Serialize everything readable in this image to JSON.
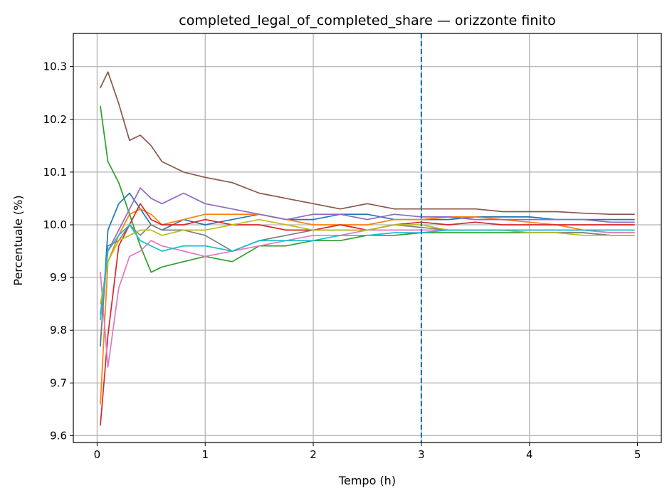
{
  "chart_data": {
    "type": "line",
    "title": "completed_legal_of_completed_share — orizzonte finito",
    "xlabel": "Tempo (h)",
    "ylabel": "Percentuale (%)",
    "xlim": [
      -0.22,
      5.22
    ],
    "ylim": [
      9.587,
      10.363
    ],
    "xticks": [
      0,
      1,
      2,
      3,
      4,
      5
    ],
    "yticks": [
      9.6,
      9.7,
      9.8,
      9.9,
      10.0,
      10.1,
      10.2,
      10.3
    ],
    "xtick_labels": [
      "0",
      "1",
      "2",
      "3",
      "4",
      "5"
    ],
    "ytick_labels": [
      "9.6",
      "9.7",
      "9.8",
      "9.9",
      "10.0",
      "10.1",
      "10.2",
      "10.3"
    ],
    "grid": true,
    "vline": {
      "x": 3.0,
      "style": "dashed",
      "color": "#1f77b4"
    },
    "x": [
      0.03,
      0.1,
      0.2,
      0.3,
      0.4,
      0.5,
      0.6,
      0.8,
      1.0,
      1.25,
      1.5,
      1.75,
      2.0,
      2.25,
      2.5,
      2.75,
      3.0,
      3.25,
      3.5,
      3.75,
      4.0,
      4.25,
      4.5,
      4.75,
      4.97
    ],
    "series": [
      {
        "color": "#1f77b4",
        "values": [
          9.77,
          9.99,
          10.04,
          10.06,
          10.03,
          10.0,
          9.99,
          10.01,
          10.0,
          10.01,
          10.02,
          10.01,
          10.01,
          10.02,
          10.02,
          10.01,
          10.01,
          10.01,
          10.015,
          10.015,
          10.015,
          10.01,
          10.01,
          10.01,
          10.01
        ]
      },
      {
        "color": "#ff7f0e",
        "values": [
          9.66,
          9.93,
          9.98,
          10.02,
          10.03,
          10.02,
          10.0,
          10.01,
          10.02,
          10.02,
          10.02,
          10.01,
          10.0,
          10.0,
          10.0,
          10.01,
          10.01,
          10.015,
          10.015,
          10.01,
          10.005,
          10.0,
          9.99,
          9.985,
          9.985
        ]
      },
      {
        "color": "#2ca02c",
        "values": [
          10.225,
          10.12,
          10.08,
          10.02,
          9.96,
          9.91,
          9.92,
          9.93,
          9.94,
          9.93,
          9.96,
          9.96,
          9.97,
          9.97,
          9.98,
          9.98,
          9.985,
          9.985,
          9.985,
          9.985,
          9.985,
          9.985,
          9.985,
          9.98,
          9.98
        ]
      },
      {
        "color": "#d62728",
        "values": [
          9.62,
          9.79,
          9.96,
          10.0,
          10.04,
          10.01,
          10.0,
          10.0,
          10.01,
          10.0,
          10.0,
          9.99,
          9.99,
          10.0,
          9.99,
          10.0,
          10.005,
          10.0,
          10.005,
          10.0,
          10.0,
          10.0,
          10.0,
          10.0,
          10.0
        ]
      },
      {
        "color": "#9467bd",
        "values": [
          9.83,
          9.95,
          9.99,
          10.03,
          10.07,
          10.05,
          10.04,
          10.06,
          10.04,
          10.03,
          10.02,
          10.01,
          10.02,
          10.02,
          10.01,
          10.02,
          10.015,
          10.015,
          10.01,
          10.01,
          10.01,
          10.01,
          10.01,
          10.005,
          10.005
        ]
      },
      {
        "color": "#8c564b",
        "values": [
          10.26,
          10.29,
          10.23,
          10.16,
          10.17,
          10.15,
          10.12,
          10.1,
          10.09,
          10.08,
          10.06,
          10.05,
          10.04,
          10.03,
          10.04,
          10.03,
          10.03,
          10.03,
          10.03,
          10.025,
          10.025,
          10.025,
          10.022,
          10.02,
          10.02
        ]
      },
      {
        "color": "#e377c2",
        "values": [
          9.91,
          9.73,
          9.88,
          9.94,
          9.95,
          9.97,
          9.96,
          9.95,
          9.94,
          9.95,
          9.96,
          9.97,
          9.98,
          9.98,
          9.99,
          9.99,
          9.99,
          9.99,
          9.99,
          9.99,
          9.99,
          9.99,
          9.99,
          9.985,
          9.985
        ]
      },
      {
        "color": "#7f7f7f",
        "values": [
          9.78,
          9.96,
          9.97,
          10.0,
          9.98,
          10.0,
          9.99,
          9.99,
          9.98,
          9.95,
          9.97,
          9.98,
          9.99,
          9.99,
          9.99,
          10.0,
          9.995,
          9.99,
          9.99,
          9.99,
          9.985,
          9.985,
          9.985,
          9.98,
          9.98
        ]
      },
      {
        "color": "#bcbd22",
        "values": [
          9.85,
          9.93,
          9.97,
          9.98,
          9.99,
          9.99,
          9.98,
          9.99,
          9.99,
          10.0,
          10.01,
          10.0,
          9.99,
          9.99,
          9.99,
          10.0,
          10.0,
          9.99,
          9.99,
          9.99,
          9.985,
          9.985,
          9.98,
          9.98,
          9.98
        ]
      },
      {
        "color": "#17becf",
        "values": [
          9.82,
          9.95,
          9.98,
          10.0,
          9.97,
          9.96,
          9.95,
          9.96,
          9.96,
          9.95,
          9.97,
          9.97,
          9.97,
          9.98,
          9.98,
          9.985,
          9.985,
          9.99,
          9.99,
          9.99,
          9.99,
          9.99,
          9.99,
          9.99,
          9.99
        ]
      }
    ]
  }
}
